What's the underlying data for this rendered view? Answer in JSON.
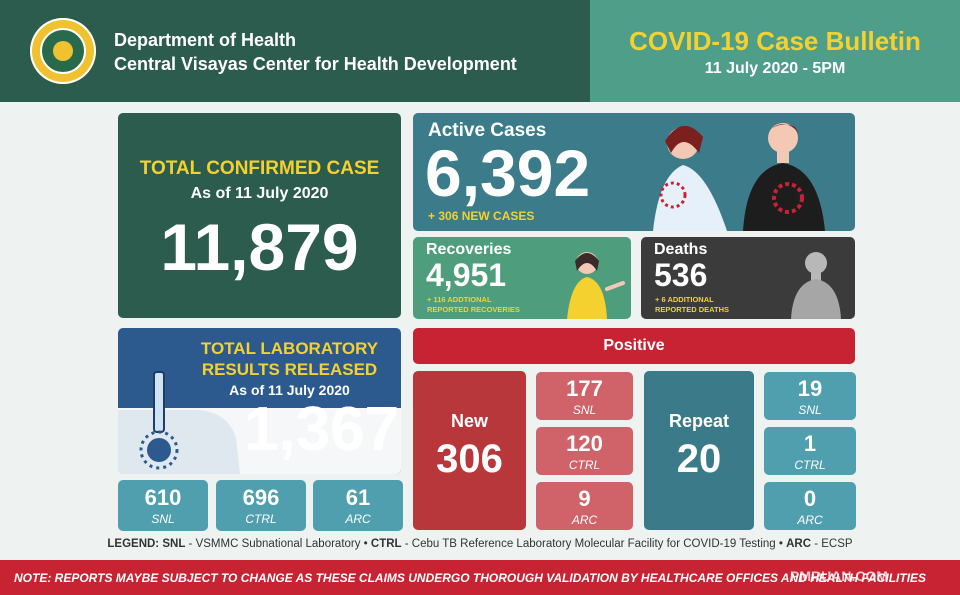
{
  "header": {
    "org_line1": "Department of Health",
    "org_line2": "Central Visayas Center for Health Development",
    "bulletin_title": "COVID-19 Case Bulletin",
    "bulletin_date": "11 July 2020 - 5PM"
  },
  "confirmed": {
    "title": "TOTAL CONFIRMED CASE",
    "as_of": "As of 11 July 2020",
    "value": "11,879"
  },
  "active": {
    "title": "Active Cases",
    "value": "6,392",
    "new_cases": "+ 306 NEW CASES"
  },
  "recoveries": {
    "title": "Recoveries",
    "value": "4,951",
    "note_line1": "+ 116 ADDTIONAL",
    "note_line2": "REPORTED RECOVERIES"
  },
  "deaths": {
    "title": "Deaths",
    "value": "536",
    "note_line1": "+ 6 ADDITIONAL",
    "note_line2": "REPORTED DEATHS"
  },
  "lab": {
    "title_line1": "TOTAL LABORATORY",
    "title_line2": "RESULTS RELEASED",
    "as_of": "As of 11 July 2020",
    "value": "1,367",
    "breakdown": [
      {
        "value": "610",
        "label": "SNL"
      },
      {
        "value": "696",
        "label": "CTRL"
      },
      {
        "value": "61",
        "label": "ARC"
      }
    ]
  },
  "positive": {
    "title": "Positive",
    "new": {
      "label": "New",
      "value": "306",
      "breakdown": [
        {
          "value": "177",
          "label": "SNL"
        },
        {
          "value": "120",
          "label": "CTRL"
        },
        {
          "value": "9",
          "label": "ARC"
        }
      ]
    },
    "repeat": {
      "label": "Repeat",
      "value": "20",
      "breakdown": [
        {
          "value": "19",
          "label": "SNL"
        },
        {
          "value": "1",
          "label": "CTRL"
        },
        {
          "value": "0",
          "label": "ARC"
        }
      ]
    }
  },
  "legend": {
    "prefix": "LEGEND:",
    "snl_key": "SNL",
    "snl_desc": " - VSMMC Subnational Laboratory • ",
    "ctrl_key": "CTRL",
    "ctrl_desc": " - Cebu TB Reference Laboratory Molecular Facility for COVID-19 Testing • ",
    "arc_key": "ARC",
    "arc_desc": " - ECSP"
  },
  "note": "NOTE: REPORTS MAYBE SUBJECT TO CHANGE AS THESE CLAIMS UNDERGO THOROUGH VALIDATION BY HEALTHCARE OFFICES AND HEALTH FACILITIES",
  "watermark": "PMRUAN.COM",
  "colors": {
    "header_dark_green": "#2b5c4e",
    "header_light_green": "#4e9e8a",
    "accent_yellow": "#f5d12f",
    "active_teal": "#3b7b8a",
    "recovery_green": "#4e9e7e",
    "death_gray": "#3b3b3b",
    "lab_blue": "#2c5a8f",
    "positive_red": "#c82333",
    "tile_blue": "#4f9fae",
    "tile_red": "#d0626a"
  },
  "icons": [
    "doh-seal-logo",
    "virus-icon",
    "sick-person-illustration",
    "recovered-person-illustration",
    "deceased-person-illustration",
    "test-tube-illustration"
  ]
}
